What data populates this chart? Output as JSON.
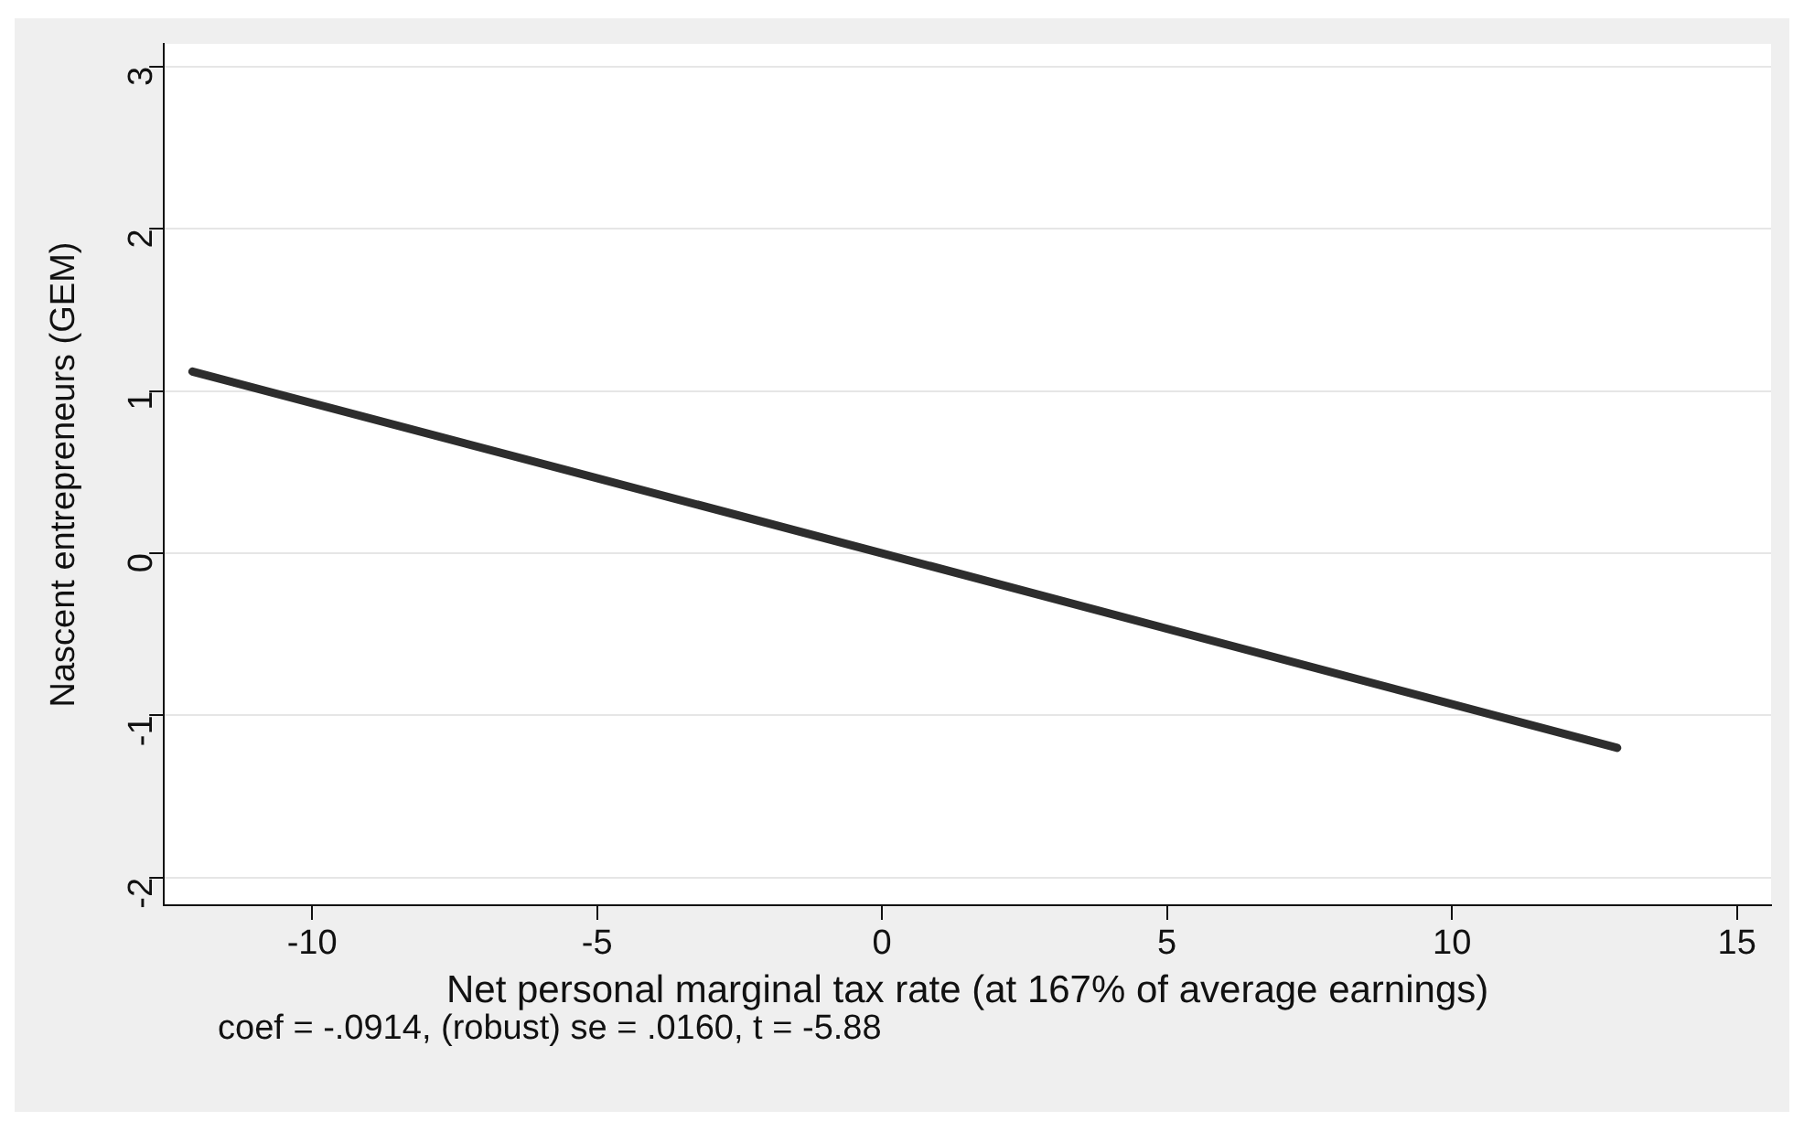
{
  "chart_data": {
    "type": "line",
    "xlabel": "Net personal marginal tax rate (at 167% of average earnings)",
    "ylabel": "Nascent entrepreneurs (GEM)",
    "x": [
      -12.1,
      0,
      12.9
    ],
    "series": [
      {
        "color": "#2d2d2d",
        "values": [
          1.12,
          0.0,
          -1.2
        ]
      }
    ],
    "xlim": [
      -12.6,
      15.6
    ],
    "xticks": [
      -10,
      -5,
      0,
      5,
      10,
      15
    ],
    "ylim": [
      -2.17,
      3.14
    ],
    "yticks": [
      -2,
      -1,
      0,
      1,
      2,
      3
    ],
    "grid": "y",
    "legend": false,
    "marker": "none",
    "line_style": "solid",
    "annotations": [
      "coef = -.0914, (robust) se = .0160, t = -5.88"
    ]
  }
}
